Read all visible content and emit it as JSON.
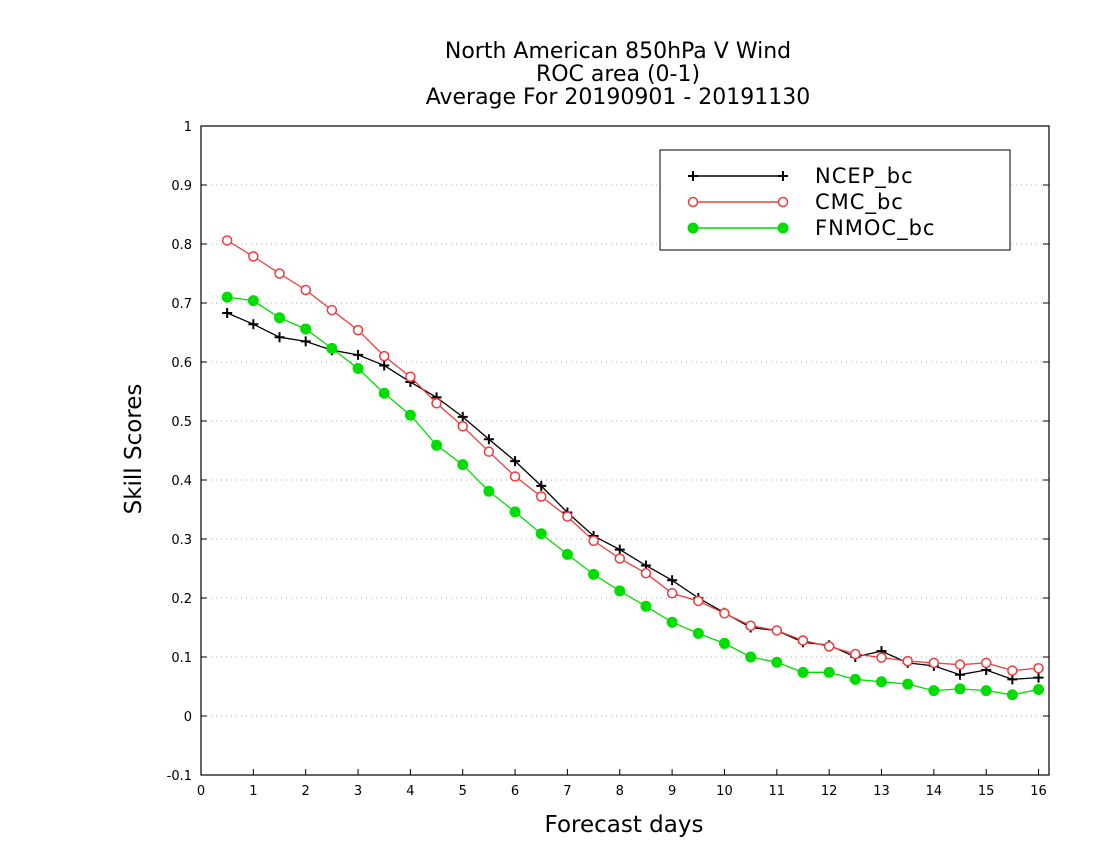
{
  "chart_data": {
    "type": "line",
    "title_lines": [
      "North American 850hPa V Wind",
      "ROC area (0-1)",
      "Average For 20190901 - 20191130"
    ],
    "xlabel": "Forecast days",
    "ylabel": "Skill Scores",
    "xlim": [
      0,
      16.2
    ],
    "ylim": [
      -0.1,
      1
    ],
    "xticks": [
      0,
      1,
      2,
      3,
      4,
      5,
      6,
      7,
      8,
      9,
      10,
      11,
      12,
      13,
      14,
      15,
      16
    ],
    "xtick_labels": [
      "0",
      "1",
      "2",
      "3",
      "4",
      "5",
      "6",
      "7",
      "8",
      "9",
      "10",
      "11",
      "12",
      "13",
      "14",
      "15",
      "16"
    ],
    "yticks": [
      -0.1,
      0,
      0.1,
      0.2,
      0.3,
      0.4,
      0.5,
      0.6,
      0.7,
      0.8,
      0.9,
      1
    ],
    "ytick_labels": [
      "-0.1",
      "0",
      "0.1",
      "0.2",
      "0.3",
      "0.4",
      "0.5",
      "0.6",
      "0.7",
      "0.8",
      "0.9",
      "1"
    ],
    "grid": "horizontal dotted",
    "legend_position": "top-right",
    "x": [
      0.5,
      1,
      1.5,
      2,
      2.5,
      3,
      3.5,
      4,
      4.5,
      5,
      5.5,
      6,
      6.5,
      7,
      7.5,
      8,
      8.5,
      9,
      9.5,
      10,
      10.5,
      11,
      11.5,
      12,
      12.5,
      13,
      13.5,
      14,
      14.5,
      15,
      15.5,
      16
    ],
    "series": [
      {
        "name": "NCEP_bc",
        "color": "#000000",
        "marker": "plus",
        "values": [
          0.683,
          0.664,
          0.642,
          0.635,
          0.62,
          0.612,
          0.594,
          0.566,
          0.54,
          0.507,
          0.469,
          0.432,
          0.39,
          0.345,
          0.305,
          0.282,
          0.255,
          0.23,
          0.2,
          0.175,
          0.15,
          0.145,
          0.125,
          0.12,
          0.1,
          0.11,
          0.09,
          0.085,
          0.07,
          0.078,
          0.062,
          0.065
        ]
      },
      {
        "name": "CMC_bc",
        "color": "#ee3b3b",
        "marker": "open-circle",
        "values": [
          0.806,
          0.779,
          0.75,
          0.722,
          0.688,
          0.654,
          0.61,
          0.575,
          0.53,
          0.491,
          0.448,
          0.406,
          0.372,
          0.338,
          0.297,
          0.267,
          0.242,
          0.208,
          0.195,
          0.174,
          0.153,
          0.145,
          0.128,
          0.118,
          0.105,
          0.099,
          0.093,
          0.09,
          0.087,
          0.09,
          0.077,
          0.081
        ]
      },
      {
        "name": "FNMOC_bc",
        "color": "#00dd00",
        "marker": "filled-circle",
        "values": [
          0.71,
          0.704,
          0.675,
          0.656,
          0.623,
          0.589,
          0.547,
          0.51,
          0.459,
          0.426,
          0.381,
          0.346,
          0.309,
          0.274,
          0.24,
          0.212,
          0.186,
          0.159,
          0.14,
          0.123,
          0.1,
          0.091,
          0.074,
          0.074,
          0.062,
          0.058,
          0.054,
          0.043,
          0.046,
          0.043,
          0.036,
          0.045
        ]
      }
    ]
  }
}
